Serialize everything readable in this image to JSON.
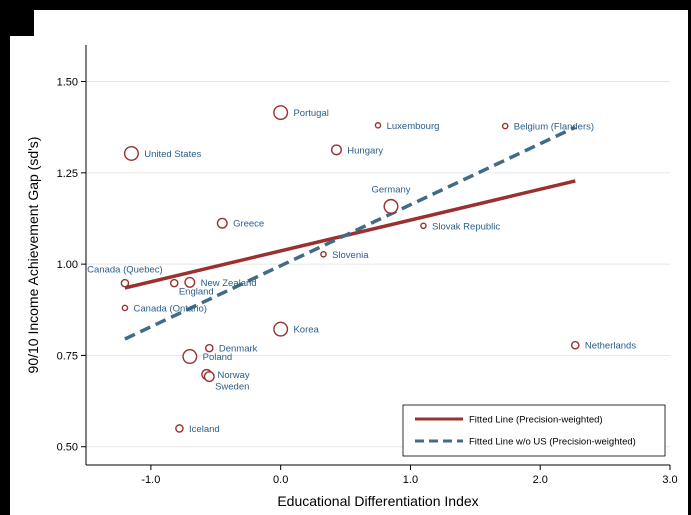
{
  "chart_data": {
    "type": "scatter",
    "xlabel": "Educational Differentiation Index",
    "ylabel": "90/10 Income Achievement Gap (sd's)",
    "xlim": [
      -1.5,
      3.0
    ],
    "ylim": [
      0.45,
      1.6
    ],
    "x_ticks": [
      -1.0,
      0.0,
      1.0,
      2.0,
      3.0
    ],
    "x_tick_labels": [
      "-1.0",
      "0.0",
      "1.0",
      "2.0",
      "3.0"
    ],
    "y_ticks": [
      0.5,
      0.75,
      1.0,
      1.25,
      1.5
    ],
    "y_tick_labels": [
      "0.50",
      "0.75",
      "1.00",
      "1.25",
      "1.50"
    ],
    "grid": "horizontal",
    "legend_position": "bottom-right",
    "colors": {
      "marker": "#9b3030",
      "label": "#2a5d8a",
      "fit": "#9b3030",
      "fit_no_us": "#426b86"
    },
    "points": [
      {
        "label": "Portugal",
        "x": 0.0,
        "y": 1.415,
        "weight": "large",
        "label_pos": "right"
      },
      {
        "label": "Luxembourg",
        "x": 0.75,
        "y": 1.38,
        "weight": "tiny",
        "label_pos": "right"
      },
      {
        "label": "Belgium (Flanders)",
        "x": 1.73,
        "y": 1.378,
        "weight": "tiny",
        "label_pos": "right"
      },
      {
        "label": "United States",
        "x": -1.15,
        "y": 1.303,
        "weight": "large",
        "label_pos": "right"
      },
      {
        "label": "Hungary",
        "x": 0.43,
        "y": 1.313,
        "weight": "medium",
        "label_pos": "right"
      },
      {
        "label": "Germany",
        "x": 0.85,
        "y": 1.158,
        "weight": "large",
        "label_pos": "above"
      },
      {
        "label": "Slovak Republic",
        "x": 1.1,
        "y": 1.105,
        "weight": "tiny",
        "label_pos": "right"
      },
      {
        "label": "Greece",
        "x": -0.45,
        "y": 1.112,
        "weight": "medium",
        "label_pos": "right"
      },
      {
        "label": "Slovenia",
        "x": 0.33,
        "y": 1.027,
        "weight": "tiny",
        "label_pos": "right"
      },
      {
        "label": "Canada (Quebec)",
        "x": -1.2,
        "y": 0.948,
        "weight": "small",
        "label_pos": "above"
      },
      {
        "label": "England",
        "x": -0.82,
        "y": 0.948,
        "weight": "small",
        "label_pos": "below-right"
      },
      {
        "label": "New Zealand",
        "x": -0.7,
        "y": 0.95,
        "weight": "medium",
        "label_pos": "right"
      },
      {
        "label": "Canada (Ontario)",
        "x": -1.2,
        "y": 0.88,
        "weight": "tiny",
        "label_pos": "right"
      },
      {
        "label": "Korea",
        "x": 0.0,
        "y": 0.822,
        "weight": "large",
        "label_pos": "right"
      },
      {
        "label": "Netherlands",
        "x": 2.27,
        "y": 0.778,
        "weight": "small",
        "label_pos": "right"
      },
      {
        "label": "Denmark",
        "x": -0.55,
        "y": 0.77,
        "weight": "small",
        "label_pos": "right"
      },
      {
        "label": "Poland",
        "x": -0.7,
        "y": 0.747,
        "weight": "large",
        "label_pos": "right"
      },
      {
        "label": "Norway",
        "x": -0.57,
        "y": 0.698,
        "weight": "medium",
        "label_pos": "right"
      },
      {
        "label": "Sweden",
        "x": -0.55,
        "y": 0.692,
        "weight": "medium",
        "label_pos": "below-right"
      },
      {
        "label": "Iceland",
        "x": -0.78,
        "y": 0.55,
        "weight": "small",
        "label_pos": "right"
      }
    ],
    "lines": [
      {
        "name": "Fitted Line (Precision-weighted)",
        "style": "solid",
        "x": [
          -1.2,
          2.27
        ],
        "y": [
          0.935,
          1.228
        ]
      },
      {
        "name": "Fitted Line w/o US (Precision-weighted)",
        "style": "dashed",
        "x": [
          -1.2,
          2.27
        ],
        "y": [
          0.795,
          1.375
        ]
      }
    ]
  }
}
